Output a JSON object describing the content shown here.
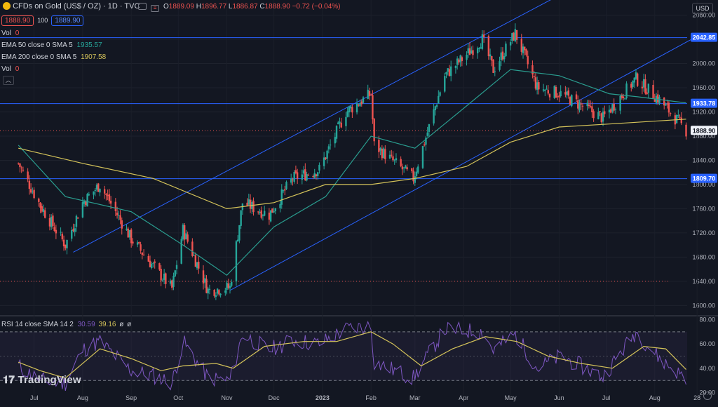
{
  "header": {
    "symbol_title": "CFDs on Gold (US$ / OZ) · 1D · TVC",
    "ohlc": {
      "o_label": "O",
      "o": "1889.09",
      "h_label": "H",
      "h": "1896.77",
      "l_label": "L",
      "l": "1886.87",
      "c_label": "C",
      "c": "1888.90",
      "change": "−0.72 (−0.04%)"
    },
    "sell_price": "1888.90",
    "spread": "100",
    "buy_price": "1889.90",
    "currency_button": "USD"
  },
  "legends": {
    "vol1_label": "Vol",
    "vol1_value": "0",
    "ema50_label": "EMA 50 close 0 SMA 5",
    "ema50_value": "1935.57",
    "ema200_label": "EMA 200 close 0 SMA 5",
    "ema200_value": "1907.58",
    "vol2_label": "Vol",
    "vol2_value": "0",
    "rsi_label": "RSI 14 close SMA 14 2",
    "rsi_value": "30.59",
    "rsi_ma_value": "39.16",
    "rsi_extra1": "ø",
    "rsi_extra2": "ø"
  },
  "logo_text": "TradingView",
  "colors": {
    "background": "#131722",
    "up": "#26a69a",
    "down": "#ef5350",
    "ema50": "#2a9d8f",
    "ema200": "#d4c35a",
    "trendline": "#2962ff",
    "rsi": "#7e57c2",
    "rsi_ma": "#d4c35a"
  },
  "chart_data": [
    {
      "type": "candlestick",
      "title": "CFDs on Gold (US$ / OZ) · 1D · TVC",
      "x_axis_labels": [
        "Jul",
        "Aug",
        "Sep",
        "Oct",
        "Nov",
        "Dec",
        "2023",
        "Feb",
        "Mar",
        "Apr",
        "May",
        "Jun",
        "Jul",
        "Aug",
        "28"
      ],
      "y_ticks": [
        1600,
        1640,
        1680,
        1720,
        1760,
        1800,
        1840,
        1880,
        1920,
        1960,
        2000,
        2040,
        2080
      ],
      "ylim": [
        1583,
        2105
      ],
      "price_labels": [
        {
          "value": 2042.85,
          "label": "2042.85"
        },
        {
          "value": 1933.78,
          "label": "1933.78"
        },
        {
          "value": 1888.9,
          "label": "1888.90"
        },
        {
          "value": 1809.7,
          "label": "1809.70"
        }
      ],
      "horizontal_levels": [
        2042.85,
        1933.78,
        1809.7
      ],
      "dotted_levels": [
        1888.9,
        1640.0
      ],
      "close_anchors": [
        {
          "date": "2022-06-21",
          "value": 1835
        },
        {
          "date": "2022-07-05",
          "value": 1765
        },
        {
          "date": "2022-07-21",
          "value": 1700
        },
        {
          "date": "2022-08-01",
          "value": 1770
        },
        {
          "date": "2022-08-12",
          "value": 1800
        },
        {
          "date": "2022-09-01",
          "value": 1710
        },
        {
          "date": "2022-09-15",
          "value": 1665
        },
        {
          "date": "2022-09-27",
          "value": 1628
        },
        {
          "date": "2022-10-04",
          "value": 1725
        },
        {
          "date": "2022-10-20",
          "value": 1625
        },
        {
          "date": "2022-11-03",
          "value": 1630
        },
        {
          "date": "2022-11-11",
          "value": 1770
        },
        {
          "date": "2022-11-28",
          "value": 1750
        },
        {
          "date": "2022-12-13",
          "value": 1810
        },
        {
          "date": "2022-12-30",
          "value": 1825
        },
        {
          "date": "2023-01-16",
          "value": 1920
        },
        {
          "date": "2023-02-01",
          "value": 1950
        },
        {
          "date": "2023-02-03",
          "value": 1865
        },
        {
          "date": "2023-02-28",
          "value": 1810
        },
        {
          "date": "2023-03-20",
          "value": 1980
        },
        {
          "date": "2023-04-13",
          "value": 2040
        },
        {
          "date": "2023-04-20",
          "value": 1990
        },
        {
          "date": "2023-05-04",
          "value": 2050
        },
        {
          "date": "2023-05-18",
          "value": 1960
        },
        {
          "date": "2023-06-02",
          "value": 1950
        },
        {
          "date": "2023-06-29",
          "value": 1910
        },
        {
          "date": "2023-07-20",
          "value": 1975
        },
        {
          "date": "2023-08-04",
          "value": 1940
        },
        {
          "date": "2023-08-21",
          "value": 1889
        }
      ],
      "series": [
        {
          "name": "EMA 50 close 0 SMA 5",
          "last": 1935.57,
          "points": [
            [
              "2022-06-21",
              1865
            ],
            [
              "2022-07-21",
              1780
            ],
            [
              "2022-09-01",
              1755
            ],
            [
              "2022-10-04",
              1700
            ],
            [
              "2022-11-01",
              1650
            ],
            [
              "2022-12-01",
              1730
            ],
            [
              "2023-01-03",
              1780
            ],
            [
              "2023-02-01",
              1880
            ],
            [
              "2023-03-01",
              1860
            ],
            [
              "2023-04-03",
              1930
            ],
            [
              "2023-05-01",
              1990
            ],
            [
              "2023-06-01",
              1980
            ],
            [
              "2023-07-03",
              1950
            ],
            [
              "2023-07-21",
              1945
            ],
            [
              "2023-08-21",
              1935
            ]
          ]
        },
        {
          "name": "EMA 200 close 0 SMA 5",
          "last": 1907.58,
          "points": [
            [
              "2022-06-21",
              1860
            ],
            [
              "2022-08-01",
              1835
            ],
            [
              "2022-09-15",
              1810
            ],
            [
              "2022-11-01",
              1760
            ],
            [
              "2022-12-01",
              1770
            ],
            [
              "2023-01-03",
              1800
            ],
            [
              "2023-02-01",
              1800
            ],
            [
              "2023-03-01",
              1810
            ],
            [
              "2023-04-03",
              1830
            ],
            [
              "2023-05-01",
              1870
            ],
            [
              "2023-06-01",
              1895
            ],
            [
              "2023-07-03",
              1900
            ],
            [
              "2023-08-21",
              1908
            ]
          ]
        }
      ],
      "trendlines": [
        {
          "from": [
            "2022-07-26",
            1688
          ],
          "to": [
            "2023-05-30",
            2110
          ]
        },
        {
          "from": [
            "2022-11-03",
            1625
          ],
          "to": [
            "2023-08-28",
            2045
          ]
        }
      ]
    },
    {
      "type": "line",
      "title": "RSI 14 close SMA 14 2",
      "y_ticks": [
        20,
        40,
        60,
        80
      ],
      "ylim": [
        18,
        82
      ],
      "bands": {
        "upper": 70,
        "lower": 30
      },
      "series": [
        {
          "name": "RSI",
          "last": 30.59,
          "points": [
            [
              "2022-06-21",
              42
            ],
            [
              "2022-07-05",
              30
            ],
            [
              "2022-07-21",
              28
            ],
            [
              "2022-08-01",
              55
            ],
            [
              "2022-08-12",
              62
            ],
            [
              "2022-09-01",
              38
            ],
            [
              "2022-09-15",
              34
            ],
            [
              "2022-09-27",
              28
            ],
            [
              "2022-10-04",
              62
            ],
            [
              "2022-10-20",
              32
            ],
            [
              "2022-11-03",
              30
            ],
            [
              "2022-11-11",
              68
            ],
            [
              "2022-11-28",
              55
            ],
            [
              "2022-12-13",
              63
            ],
            [
              "2022-12-30",
              60
            ],
            [
              "2023-01-16",
              72
            ],
            [
              "2023-02-01",
              75
            ],
            [
              "2023-02-03",
              45
            ],
            [
              "2023-02-28",
              32
            ],
            [
              "2023-03-20",
              72
            ],
            [
              "2023-04-13",
              70
            ],
            [
              "2023-04-20",
              55
            ],
            [
              "2023-05-04",
              68
            ],
            [
              "2023-05-18",
              40
            ],
            [
              "2023-06-02",
              50
            ],
            [
              "2023-06-29",
              33
            ],
            [
              "2023-07-20",
              70
            ],
            [
              "2023-08-04",
              48
            ],
            [
              "2023-08-21",
              31
            ]
          ]
        },
        {
          "name": "RSI SMA 14",
          "last": 39.16,
          "points": [
            [
              "2022-06-21",
              45
            ],
            [
              "2022-07-05",
              38
            ],
            [
              "2022-07-21",
              32
            ],
            [
              "2022-08-12",
              56
            ],
            [
              "2022-09-01",
              48
            ],
            [
              "2022-09-20",
              38
            ],
            [
              "2022-10-04",
              42
            ],
            [
              "2022-10-25",
              44
            ],
            [
              "2022-11-05",
              40
            ],
            [
              "2022-11-25",
              58
            ],
            [
              "2022-12-20",
              62
            ],
            [
              "2023-01-10",
              62
            ],
            [
              "2023-02-01",
              70
            ],
            [
              "2023-02-15",
              60
            ],
            [
              "2023-03-05",
              42
            ],
            [
              "2023-03-25",
              56
            ],
            [
              "2023-04-15",
              66
            ],
            [
              "2023-05-05",
              62
            ],
            [
              "2023-05-25",
              50
            ],
            [
              "2023-06-15",
              44
            ],
            [
              "2023-07-05",
              40
            ],
            [
              "2023-07-25",
              58
            ],
            [
              "2023-08-08",
              56
            ],
            [
              "2023-08-21",
              39
            ]
          ]
        }
      ]
    }
  ]
}
